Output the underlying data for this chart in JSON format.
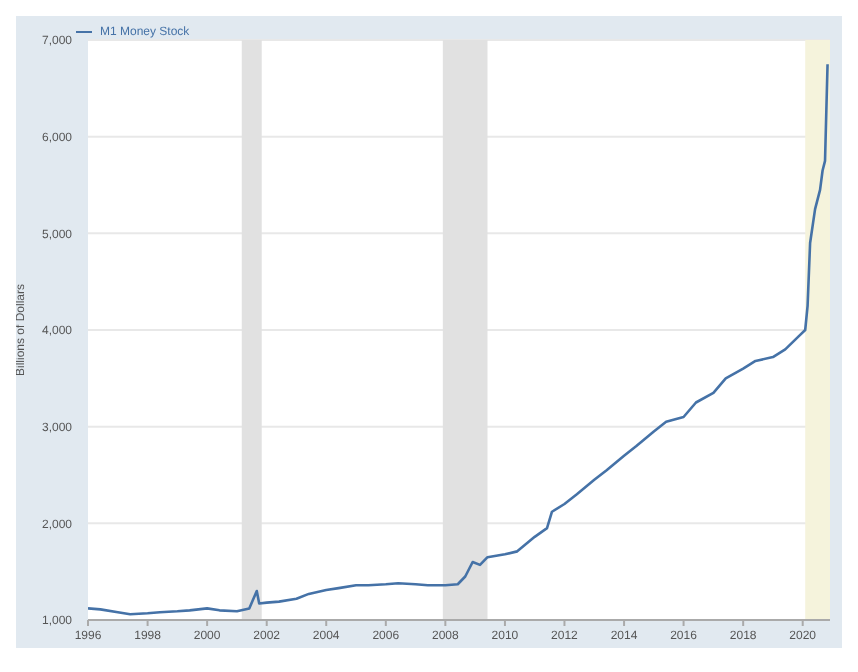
{
  "chart_data": {
    "type": "line",
    "ylabel": "Billions of Dollars",
    "legend": "top left",
    "grid": "y",
    "x": [
      "1996-01",
      "1996-06",
      "1997-01",
      "1997-06",
      "1998-01",
      "1998-06",
      "1999-01",
      "1999-06",
      "2000-01",
      "2000-06",
      "2001-01",
      "2001-06",
      "2001-09",
      "2001-10",
      "2002-01",
      "2002-06",
      "2003-01",
      "2003-06",
      "2004-01",
      "2004-06",
      "2005-01",
      "2005-06",
      "2006-01",
      "2006-06",
      "2007-01",
      "2007-06",
      "2008-01",
      "2008-06",
      "2008-09",
      "2008-12",
      "2009-03",
      "2009-06",
      "2010-01",
      "2010-06",
      "2011-01",
      "2011-06",
      "2011-08",
      "2012-01",
      "2012-06",
      "2013-01",
      "2013-06",
      "2014-01",
      "2014-06",
      "2015-01",
      "2015-06",
      "2016-01",
      "2016-06",
      "2017-01",
      "2017-06",
      "2018-01",
      "2018-06",
      "2019-01",
      "2019-06",
      "2019-12",
      "2020-02",
      "2020-03",
      "2020-04",
      "2020-06",
      "2020-08",
      "2020-09",
      "2020-10",
      "2020-11"
    ],
    "series": [
      {
        "name": "M1 Money Stock",
        "color": "#4572a7",
        "values": [
          1120,
          1110,
          1080,
          1060,
          1070,
          1080,
          1090,
          1100,
          1120,
          1100,
          1090,
          1120,
          1300,
          1170,
          1180,
          1190,
          1220,
          1270,
          1310,
          1330,
          1360,
          1360,
          1370,
          1380,
          1370,
          1360,
          1360,
          1370,
          1450,
          1600,
          1570,
          1650,
          1680,
          1710,
          1860,
          1950,
          2120,
          2200,
          2300,
          2450,
          2550,
          2700,
          2800,
          2950,
          3050,
          3100,
          3250,
          3350,
          3500,
          3600,
          3680,
          3720,
          3800,
          3950,
          4000,
          4250,
          4900,
          5250,
          5450,
          5650,
          5750,
          6750
        ]
      }
    ],
    "xlim": [
      "1996",
      "2020-12"
    ],
    "xticks": [
      "1996",
      "1998",
      "2000",
      "2002",
      "2004",
      "2006",
      "2008",
      "2010",
      "2012",
      "2014",
      "2016",
      "2018",
      "2020"
    ],
    "ylim": [
      1000,
      7000
    ],
    "yticks": [
      {
        "value": 1000,
        "label": "1,000"
      },
      {
        "value": 2000,
        "label": "2,000"
      },
      {
        "value": 3000,
        "label": "3,000"
      },
      {
        "value": 4000,
        "label": "4,000"
      },
      {
        "value": 5000,
        "label": "5,000"
      },
      {
        "value": 6000,
        "label": "6,000"
      },
      {
        "value": 7000,
        "label": "7,000"
      }
    ],
    "bands": [
      {
        "axis": "x",
        "from": "2001-03",
        "to": "2001-11",
        "color": "#e1e1e1"
      },
      {
        "axis": "x",
        "from": "2007-12",
        "to": "2009-06",
        "color": "#e1e1e1"
      },
      {
        "axis": "x",
        "from": "2020-02",
        "to": "2020-12",
        "color": "#f5f3dc"
      }
    ],
    "marker": "none",
    "line_style": "solid"
  }
}
